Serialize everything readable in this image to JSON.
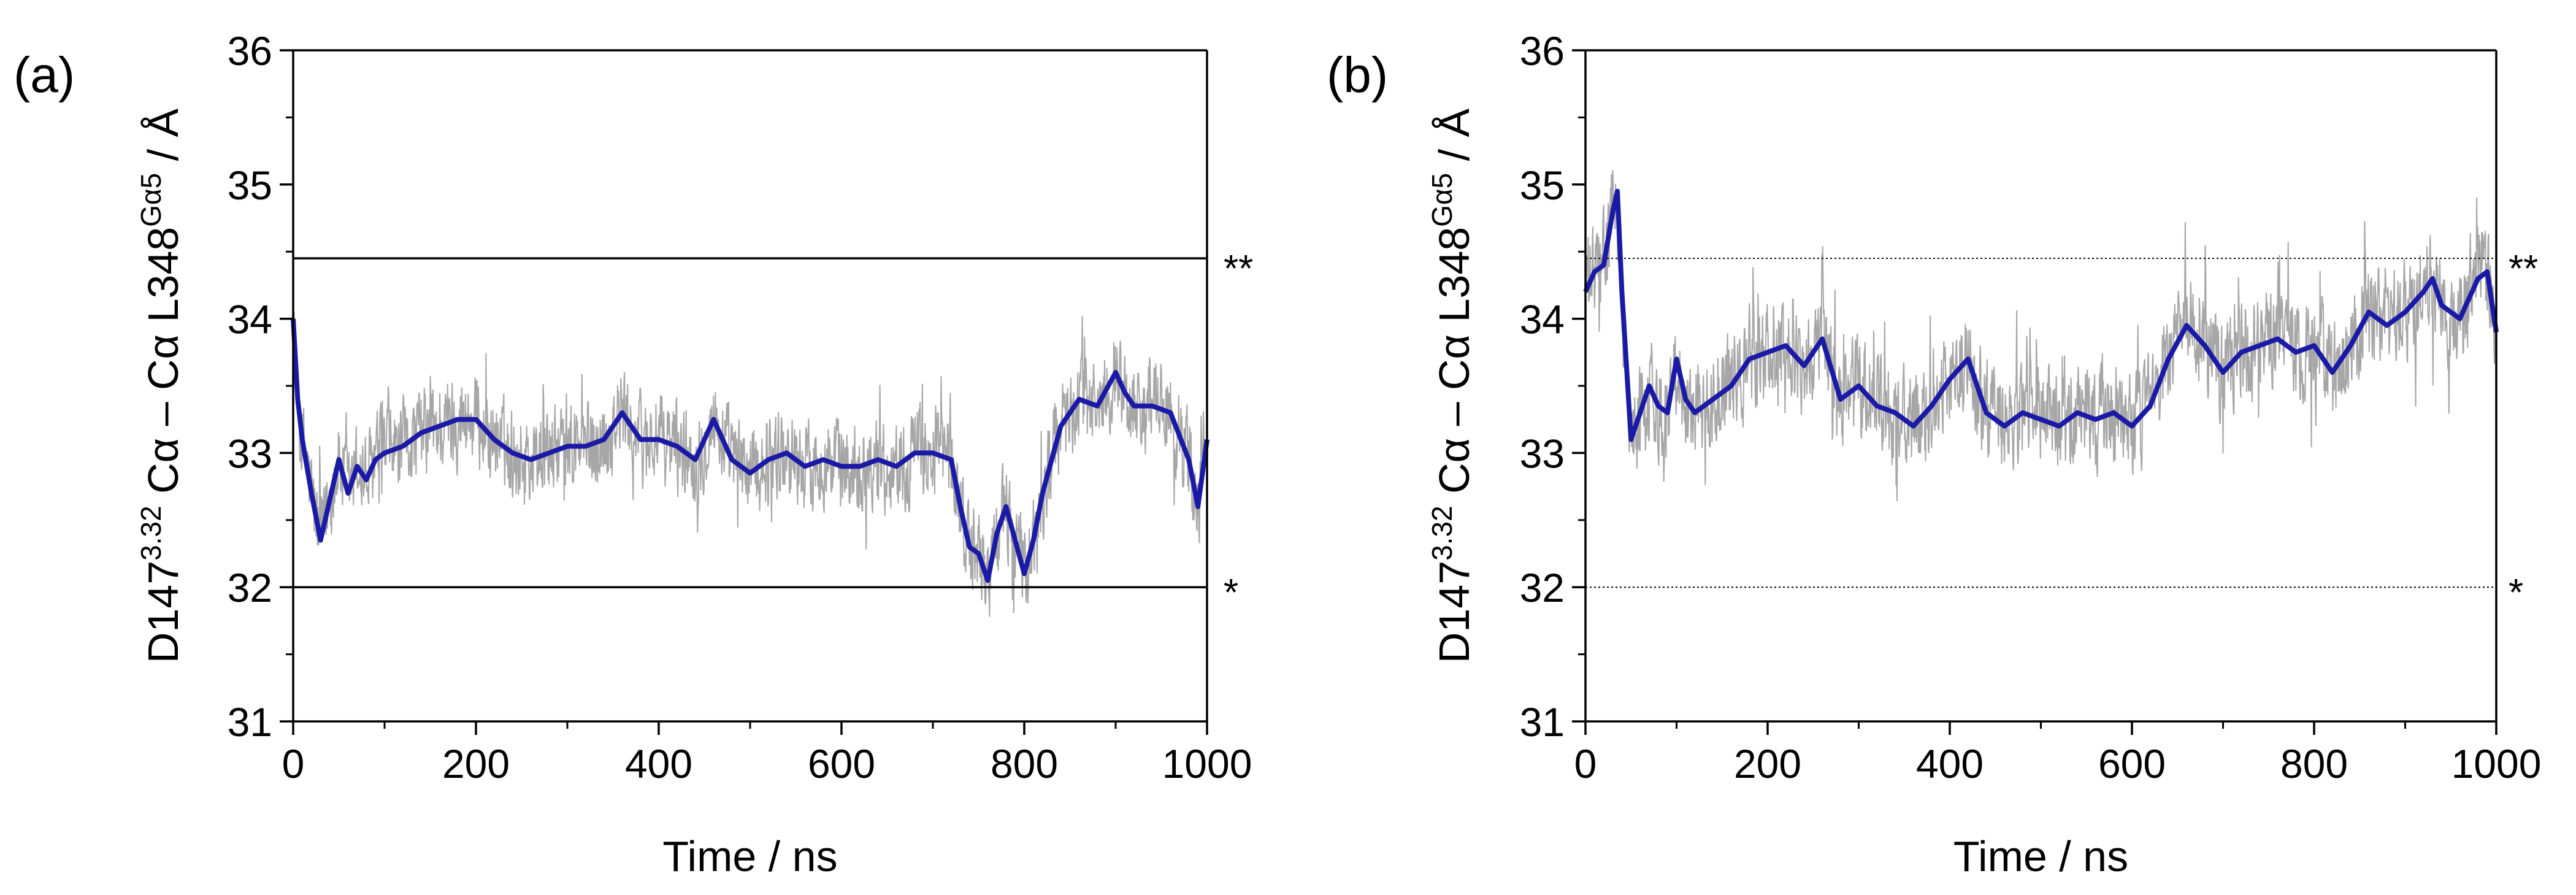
{
  "chart_data": [
    {
      "type": "line",
      "panel_label": "(a)",
      "xlabel": "Time / ns",
      "ylabel": {
        "main": "D147",
        "sup1": "3.32",
        "mid": " Cα – Cα L348",
        "sup2": "Gα5",
        "tail": " / Å"
      },
      "xlim": [
        0,
        1000
      ],
      "ylim": [
        31,
        36
      ],
      "x_ticks": [
        0,
        200,
        400,
        600,
        800,
        1000
      ],
      "y_ticks": [
        31,
        32,
        33,
        34,
        35,
        36
      ],
      "reference_lines": [
        {
          "y": 34.45,
          "label": "**",
          "style": "solid"
        },
        {
          "y": 32.0,
          "label": "*",
          "style": "solid"
        }
      ],
      "colors": {
        "raw": "#a6a6a6",
        "smoothed": "#1a1aa6",
        "axis": "#000000"
      },
      "raw_noise_amplitude": 0.45,
      "series": [
        {
          "role": "smoothed",
          "x": [
            0,
            5,
            10,
            20,
            30,
            40,
            50,
            60,
            70,
            80,
            90,
            100,
            120,
            140,
            160,
            180,
            200,
            220,
            240,
            260,
            280,
            300,
            320,
            340,
            360,
            380,
            400,
            420,
            440,
            460,
            480,
            500,
            520,
            540,
            560,
            580,
            600,
            620,
            640,
            660,
            680,
            700,
            720,
            730,
            740,
            750,
            760,
            770,
            780,
            790,
            800,
            810,
            820,
            840,
            860,
            880,
            900,
            910,
            920,
            940,
            960,
            980,
            990,
            1000
          ],
          "y": [
            34.0,
            33.4,
            33.1,
            32.7,
            32.35,
            32.65,
            32.95,
            32.7,
            32.9,
            32.8,
            32.95,
            33.0,
            33.05,
            33.15,
            33.2,
            33.25,
            33.25,
            33.1,
            33.0,
            32.95,
            33.0,
            33.05,
            33.05,
            33.1,
            33.3,
            33.1,
            33.1,
            33.05,
            32.95,
            33.25,
            32.95,
            32.85,
            32.95,
            33.0,
            32.9,
            32.95,
            32.9,
            32.9,
            32.95,
            32.9,
            33.0,
            33.0,
            32.95,
            32.6,
            32.3,
            32.25,
            32.05,
            32.4,
            32.6,
            32.35,
            32.1,
            32.35,
            32.7,
            33.2,
            33.4,
            33.35,
            33.6,
            33.45,
            33.35,
            33.35,
            33.3,
            32.95,
            32.6,
            33.1
          ]
        }
      ]
    },
    {
      "type": "line",
      "panel_label": "(b)",
      "xlabel": "Time / ns",
      "ylabel": {
        "main": "D147",
        "sup1": "3.32",
        "mid": " Cα – Cα L348",
        "sup2": "Gα5",
        "tail": " / Å"
      },
      "xlim": [
        0,
        1000
      ],
      "ylim": [
        31,
        36
      ],
      "x_ticks": [
        0,
        200,
        400,
        600,
        800,
        1000
      ],
      "y_ticks": [
        31,
        32,
        33,
        34,
        35,
        36
      ],
      "reference_lines": [
        {
          "y": 34.45,
          "label": "**",
          "style": "dotted"
        },
        {
          "y": 32.0,
          "label": "*",
          "style": "dotted"
        }
      ],
      "colors": {
        "raw": "#a6a6a6",
        "smoothed": "#1a1aa6",
        "axis": "#000000"
      },
      "raw_noise_amplitude": 0.5,
      "series": [
        {
          "role": "smoothed",
          "x": [
            0,
            10,
            20,
            30,
            35,
            40,
            50,
            60,
            70,
            80,
            90,
            100,
            110,
            120,
            140,
            160,
            180,
            200,
            220,
            240,
            260,
            280,
            300,
            320,
            340,
            360,
            380,
            400,
            420,
            440,
            460,
            480,
            500,
            520,
            540,
            560,
            580,
            600,
            620,
            640,
            660,
            680,
            700,
            720,
            740,
            760,
            780,
            800,
            820,
            840,
            860,
            880,
            900,
            920,
            930,
            940,
            960,
            980,
            990,
            1000
          ],
          "y": [
            34.2,
            34.35,
            34.4,
            34.8,
            34.95,
            34.2,
            33.1,
            33.3,
            33.5,
            33.35,
            33.3,
            33.7,
            33.4,
            33.3,
            33.4,
            33.5,
            33.7,
            33.75,
            33.8,
            33.65,
            33.85,
            33.4,
            33.5,
            33.35,
            33.3,
            33.2,
            33.35,
            33.55,
            33.7,
            33.3,
            33.2,
            33.3,
            33.25,
            33.2,
            33.3,
            33.25,
            33.3,
            33.2,
            33.35,
            33.7,
            33.95,
            33.8,
            33.6,
            33.75,
            33.8,
            33.85,
            33.75,
            33.8,
            33.6,
            33.8,
            34.05,
            33.95,
            34.05,
            34.2,
            34.3,
            34.1,
            34.0,
            34.3,
            34.35,
            33.9
          ]
        }
      ]
    }
  ]
}
